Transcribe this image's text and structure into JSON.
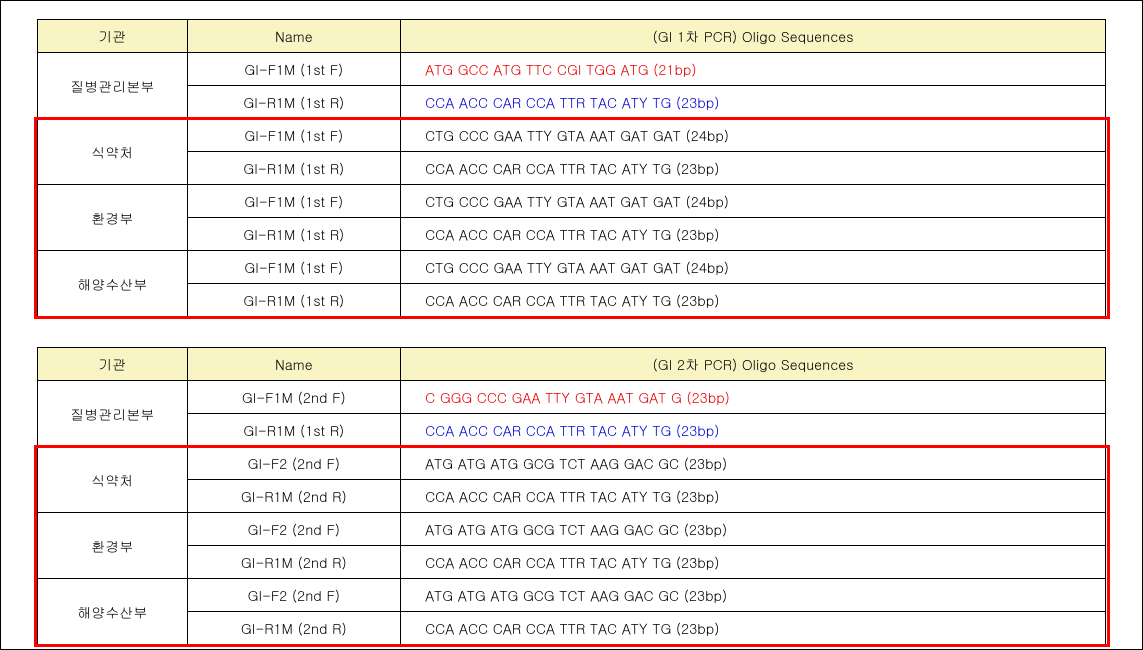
{
  "colors": {
    "header_bg": "#f8f4c4",
    "red": "#e60000",
    "blue": "#0000d0",
    "highlight_border": "#ff0000",
    "border": "#000000",
    "background": "#ffffff"
  },
  "table1": {
    "headers": {
      "col1": "기관",
      "col2": "Name",
      "col3": "(GI 1차 PCR) Oligo Sequences"
    },
    "groups": [
      {
        "agency": "질병관리본부",
        "rows": [
          {
            "name": "GI-F1M (1st F)",
            "seq": "ATG GCC ATG TTC CGI TGG ATG (21bp)",
            "color": "red"
          },
          {
            "name": "GI-R1M (1st R)",
            "seq": "CCA ACC CAR CCA TTR TAC ATY TG (23bp)",
            "color": "blue"
          }
        ]
      },
      {
        "agency": "식약처",
        "rows": [
          {
            "name": "GI-F1M (1st F)",
            "seq": "CTG CCC GAA TTY GTA AAT GAT GAT (24bp)",
            "color": ""
          },
          {
            "name": "GI-R1M (1st R)",
            "seq": "CCA ACC CAR CCA TTR TAC ATY TG (23bp)",
            "color": ""
          }
        ]
      },
      {
        "agency": "환경부",
        "rows": [
          {
            "name": "GI-F1M (1st F)",
            "seq": "CTG CCC GAA TTY GTA AAT GAT GAT (24bp)",
            "color": ""
          },
          {
            "name": "GI-R1M (1st R)",
            "seq": "CCA ACC CAR CCA TTR TAC ATY TG (23bp)",
            "color": ""
          }
        ]
      },
      {
        "agency": "해양수산부",
        "rows": [
          {
            "name": "GI-F1M (1st F)",
            "seq": "CTG CCC GAA TTY GTA AAT GAT GAT (24bp)",
            "color": ""
          },
          {
            "name": "GI-R1M (1st R)",
            "seq": "CCA ACC CAR CCA TTR TAC ATY TG (23bp)",
            "color": ""
          }
        ]
      }
    ]
  },
  "table2": {
    "headers": {
      "col1": "기관",
      "col2": "Name",
      "col3": "(GI 2차 PCR) Oligo Sequences"
    },
    "groups": [
      {
        "agency": "질병관리본부",
        "rows": [
          {
            "name": "GI-F1M (2nd F)",
            "seq": "C GGG CCC GAA TTY GTA AAT GAT G (23bp)",
            "color": "red"
          },
          {
            "name": "GI-R1M (1st R)",
            "seq": "CCA ACC CAR CCA TTR TAC ATY TG (23bp)",
            "color": "blue"
          }
        ]
      },
      {
        "agency": "식약처",
        "rows": [
          {
            "name": "GI-F2 (2nd F)",
            "seq": "ATG ATG ATG GCG TCT AAG GAC GC (23bp)",
            "color": ""
          },
          {
            "name": "GI-R1M (2nd R)",
            "seq": "CCA ACC CAR CCA TTR TAC ATY TG (23bp)",
            "color": ""
          }
        ]
      },
      {
        "agency": "환경부",
        "rows": [
          {
            "name": "GI-F2 (2nd F)",
            "seq": "ATG ATG ATG GCG TCT AAG GAC GC (23bp)",
            "color": ""
          },
          {
            "name": "GI-R1M (2nd R)",
            "seq": "CCA ACC CAR CCA TTR TAC ATY TG (23bp)",
            "color": ""
          }
        ]
      },
      {
        "agency": "해양수산부",
        "rows": [
          {
            "name": "GI-F2 (2nd F)",
            "seq": "ATG ATG ATG GCG TCT AAG GAC GC (23bp)",
            "color": ""
          },
          {
            "name": "GI-R1M (2nd R)",
            "seq": "CCA ACC CAR CCA TTR TAC ATY TG (23bp)",
            "color": ""
          }
        ]
      }
    ]
  }
}
